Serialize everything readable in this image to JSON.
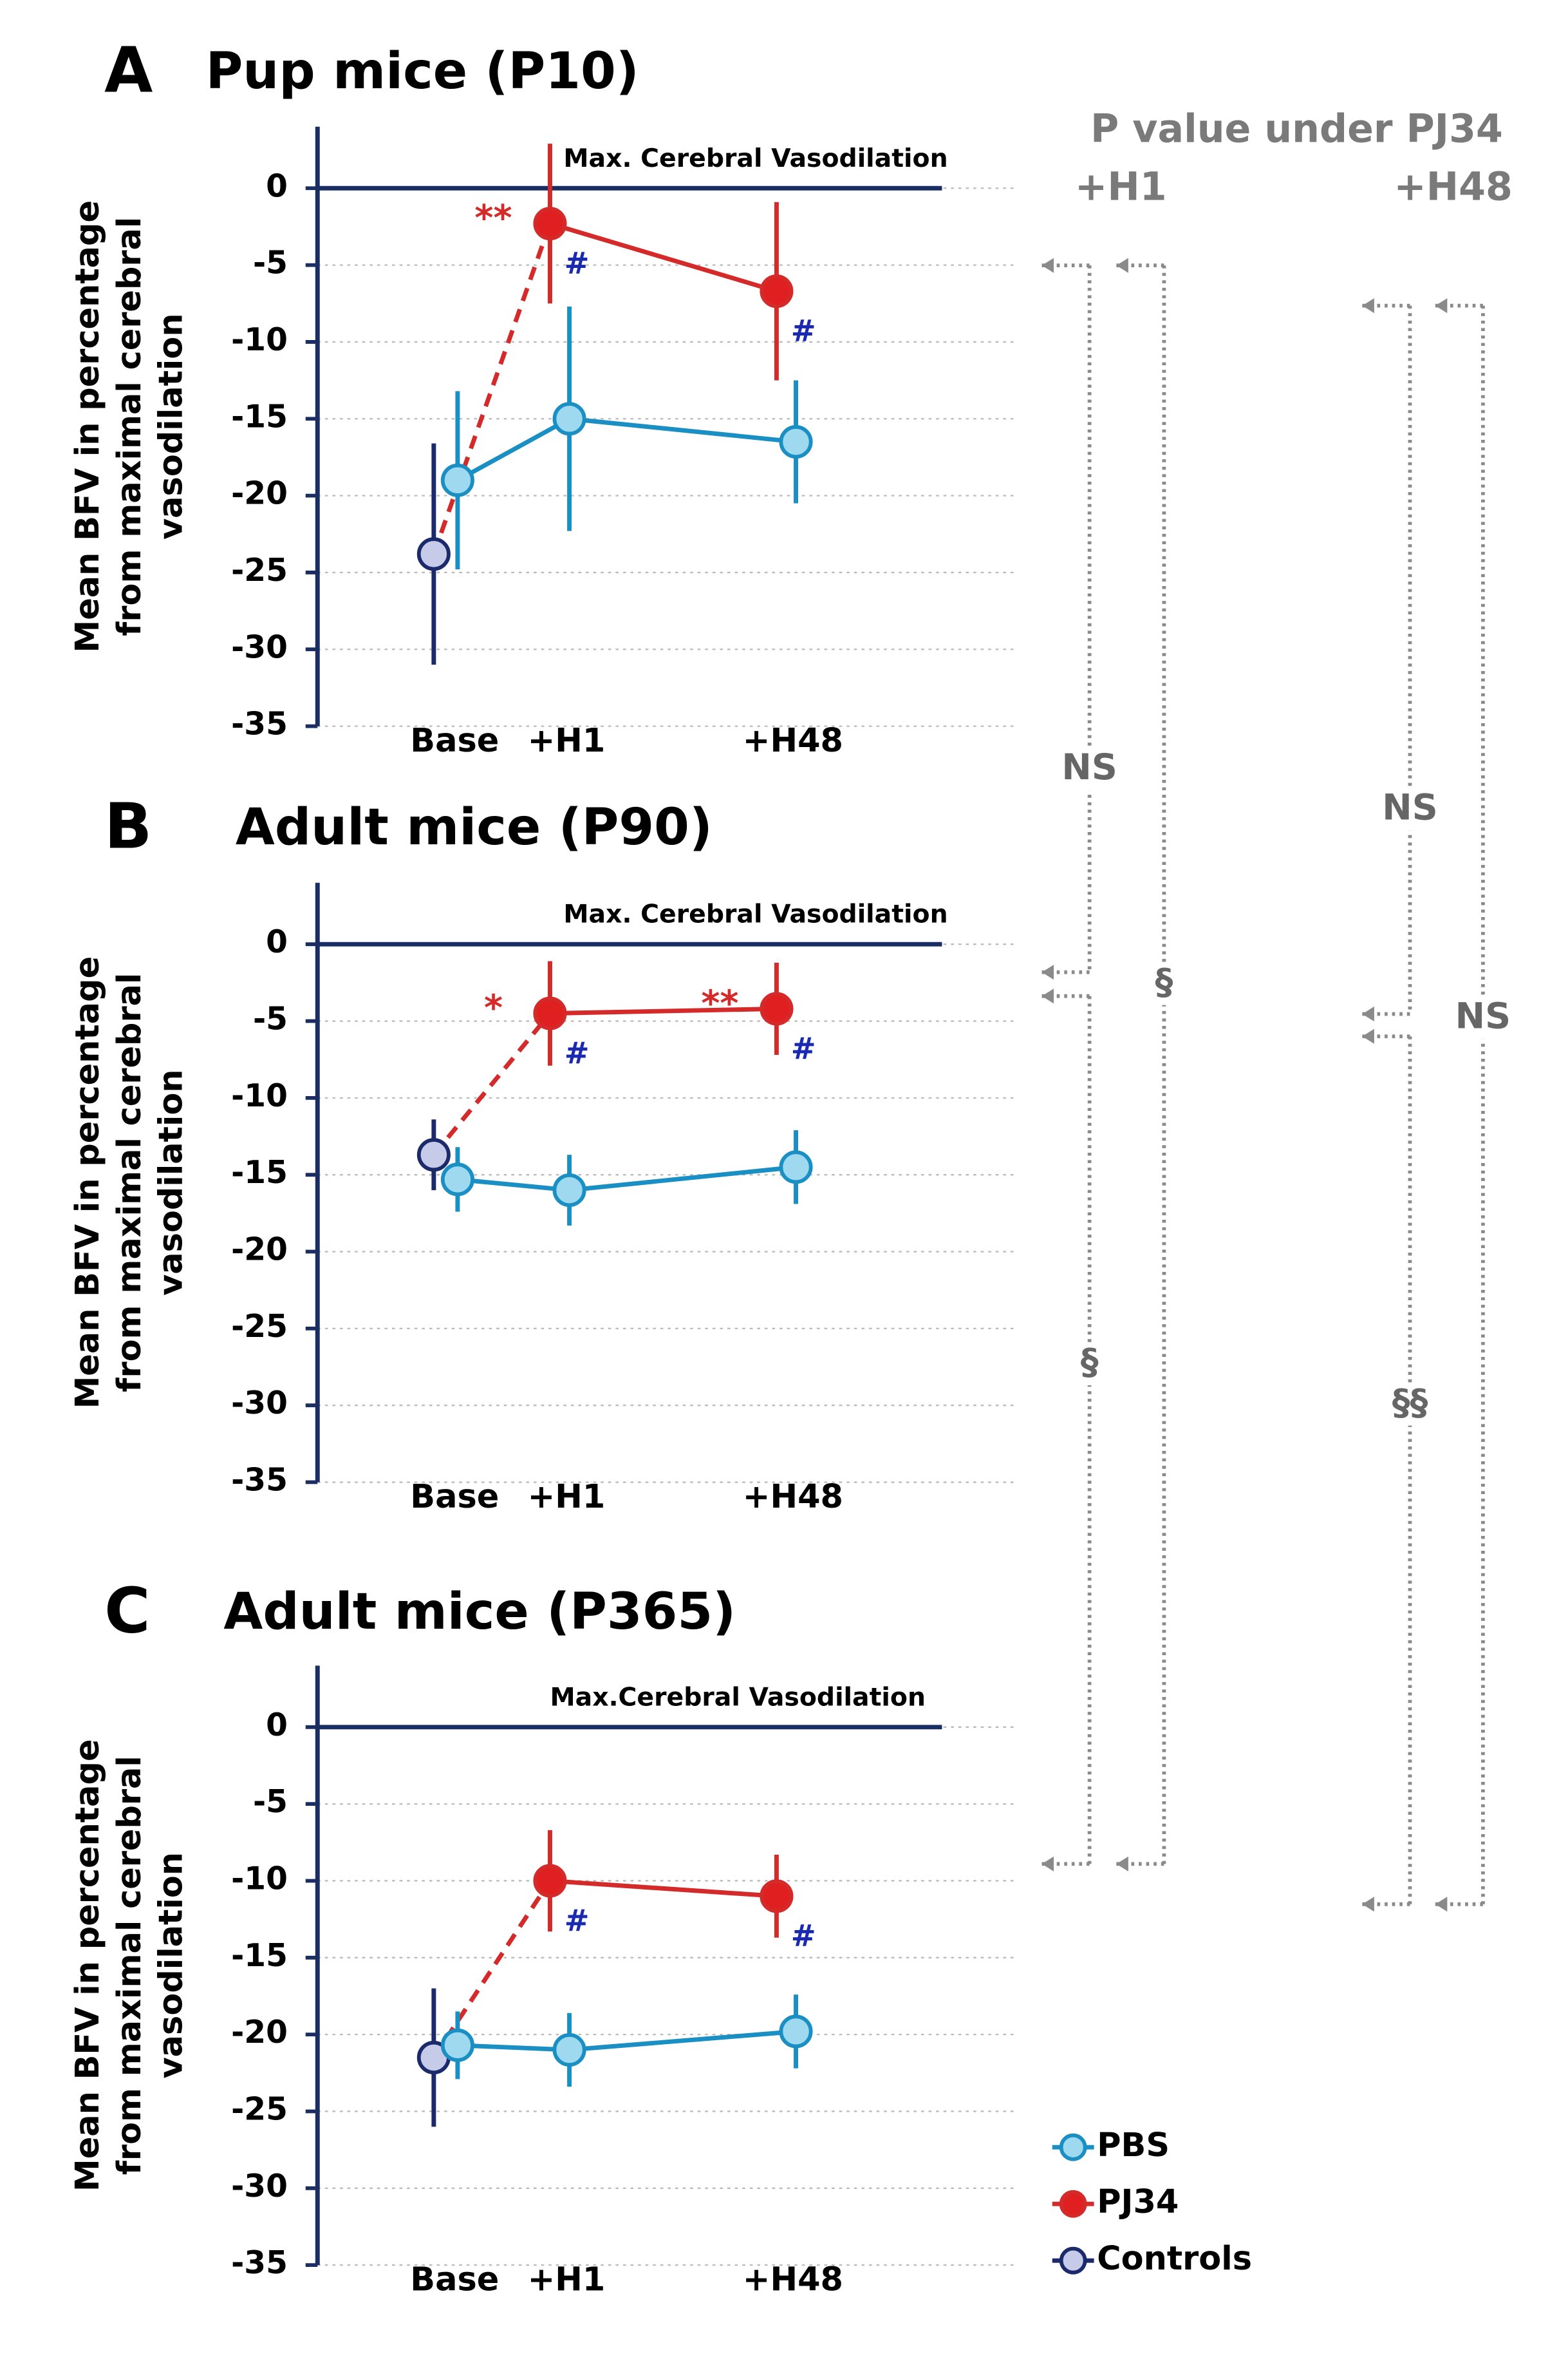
{
  "chart_data": [
    {
      "type": "line",
      "panel": "A",
      "title": "Pup mice (P10)",
      "ylabel": "Mean BFV in percentage from maximal cerebral vasodilation",
      "annotation": "Max. Cerebral Vasodilation",
      "categories": [
        "Base",
        "+H1",
        "+H48"
      ],
      "ylim": [
        -35,
        4
      ],
      "yticks": [
        0,
        -5,
        -10,
        -15,
        -20,
        -25,
        -30,
        -35
      ],
      "grid": true,
      "series": [
        {
          "name": "PBS",
          "color": "#1a8fc4",
          "fill": "#9fd9ef",
          "values": [
            -19,
            -15,
            -16.5
          ],
          "errors": [
            5.8,
            7.3,
            4
          ]
        },
        {
          "name": "PJ34",
          "color": "#d42a2a",
          "fill": "#e02020",
          "values": [
            null,
            -2.3,
            -6.7
          ],
          "errors": [
            null,
            5.2,
            5.8
          ],
          "stars": [
            null,
            "**",
            null
          ],
          "marks": [
            null,
            "#",
            "#"
          ]
        },
        {
          "name": "Controls",
          "color": "#1b2a6b",
          "fill": "#c5cbe8",
          "values": [
            -23.8,
            null,
            null
          ],
          "errors": [
            7.2,
            null,
            null
          ]
        }
      ]
    },
    {
      "type": "line",
      "panel": "B",
      "title": "Adult mice (P90)",
      "ylabel": "Mean BFV in percentage from maximal cerebral vasodilation",
      "annotation": "Max. Cerebral Vasodilation",
      "categories": [
        "Base",
        "+H1",
        "+H48"
      ],
      "ylim": [
        -35,
        4
      ],
      "yticks": [
        0,
        -5,
        -10,
        -15,
        -20,
        -25,
        -30,
        -35
      ],
      "grid": true,
      "series": [
        {
          "name": "PBS",
          "color": "#1a8fc4",
          "fill": "#9fd9ef",
          "values": [
            -15.3,
            -16,
            -14.5
          ],
          "errors": [
            2.1,
            2.3,
            2.4
          ]
        },
        {
          "name": "PJ34",
          "color": "#d42a2a",
          "fill": "#e02020",
          "values": [
            null,
            -4.5,
            -4.2
          ],
          "errors": [
            null,
            3.4,
            3
          ],
          "stars": [
            null,
            "*",
            "**"
          ],
          "marks": [
            null,
            "#",
            "#"
          ]
        },
        {
          "name": "Controls",
          "color": "#1b2a6b",
          "fill": "#c5cbe8",
          "values": [
            -13.7,
            null,
            null
          ],
          "errors": [
            2.3,
            null,
            null
          ]
        }
      ]
    },
    {
      "type": "line",
      "panel": "C",
      "title": "Adult mice (P365)",
      "ylabel": "Mean BFV in percentage from maximal cerebral vasodilation",
      "annotation": "Max.Cerebral Vasodilation",
      "categories": [
        "Base",
        "+H1",
        "+H48"
      ],
      "ylim": [
        -35,
        4
      ],
      "yticks": [
        0,
        -5,
        -10,
        -15,
        -20,
        -25,
        -30,
        -35
      ],
      "grid": true,
      "series": [
        {
          "name": "PBS",
          "color": "#1a8fc4",
          "fill": "#9fd9ef",
          "values": [
            -20.7,
            -21,
            -19.8
          ],
          "errors": [
            2.2,
            2.4,
            2.4
          ]
        },
        {
          "name": "PJ34",
          "color": "#d42a2a",
          "fill": "#e02020",
          "values": [
            null,
            -10,
            -11
          ],
          "errors": [
            null,
            3.3,
            2.7
          ],
          "marks": [
            null,
            "#",
            "#"
          ]
        },
        {
          "name": "Controls",
          "color": "#1b2a6b",
          "fill": "#c5cbe8",
          "values": [
            -21.5,
            null,
            null
          ],
          "errors": [
            4.5,
            null,
            null
          ]
        }
      ]
    }
  ],
  "legend": {
    "position": "bottom-right"
  },
  "pvalues": {
    "title": "P value under PJ34",
    "columns": [
      "+H1",
      "+H48"
    ],
    "comparisons": [
      [
        "NS",
        "§",
        "§"
      ],
      [
        "NS",
        "§§",
        "NS"
      ]
    ]
  }
}
